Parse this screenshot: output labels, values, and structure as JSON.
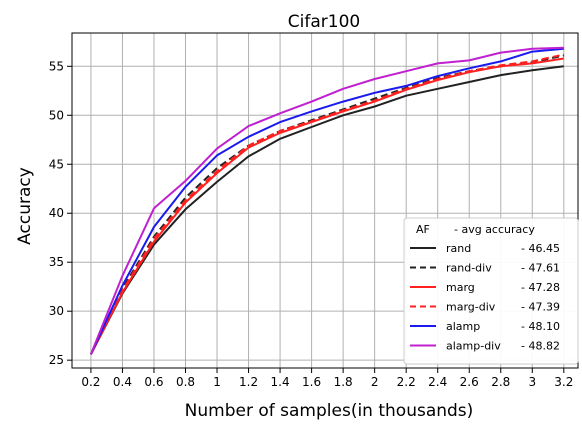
{
  "chart_data": {
    "type": "line",
    "title": "Cifar100",
    "xlabel": "Number of samples(in thousands)",
    "ylabel": "Accuracy",
    "x": [
      0.2,
      0.4,
      0.6,
      0.8,
      1.0,
      1.2,
      1.4,
      1.6,
      1.8,
      2.0,
      2.2,
      2.4,
      2.6,
      2.8,
      3.0,
      3.2
    ],
    "x_tick_labels": [
      "0.2",
      "0.4",
      "0.6",
      "0.8",
      "1",
      "1.2",
      "1.4",
      "1.6",
      "1.8",
      "2",
      "2.2",
      "2.4",
      "2.6",
      "2.8",
      "3",
      "3.2"
    ],
    "y_ticks": [
      25,
      30,
      35,
      40,
      45,
      50,
      55
    ],
    "xlim": [
      0.08,
      3.29
    ],
    "ylim": [
      24.2,
      58.4
    ],
    "grid": true,
    "legend": {
      "placement": "lower-right",
      "header_name": "AF",
      "header_value": "- avg accuracy"
    },
    "series": [
      {
        "name": "rand",
        "legend_value": "- 46.45",
        "color": "#222222",
        "dash": "solid",
        "values": [
          25.6,
          31.8,
          36.8,
          40.4,
          43.2,
          45.8,
          47.6,
          48.8,
          50.0,
          50.9,
          52.0,
          52.7,
          53.4,
          54.1,
          54.6,
          55.0
        ]
      },
      {
        "name": "rand-div",
        "legend_value": "- 47.61",
        "color": "#222222",
        "dash": "dashed",
        "values": [
          25.6,
          32.3,
          37.6,
          41.6,
          44.6,
          46.9,
          48.4,
          49.5,
          50.6,
          51.7,
          52.8,
          53.8,
          54.5,
          55.0,
          55.4,
          56.1
        ]
      },
      {
        "name": "marg",
        "legend_value": "- 47.28",
        "color": "#ff2020",
        "dash": "solid",
        "values": [
          25.6,
          31.9,
          37.1,
          41.1,
          44.1,
          46.7,
          48.2,
          49.3,
          50.4,
          51.4,
          52.6,
          53.6,
          54.4,
          55.0,
          55.3,
          55.8
        ]
      },
      {
        "name": "marg-div",
        "legend_value": "- 47.39",
        "color": "#ff2020",
        "dash": "dashed",
        "values": [
          25.6,
          32.1,
          37.4,
          41.3,
          44.3,
          46.9,
          48.4,
          49.4,
          50.5,
          51.5,
          52.7,
          53.7,
          54.5,
          55.1,
          55.5,
          56.2
        ]
      },
      {
        "name": "alamp",
        "legend_value": "- 48.10",
        "color": "#1a1aee",
        "dash": "solid",
        "values": [
          25.6,
          32.6,
          38.6,
          42.7,
          45.9,
          47.8,
          49.3,
          50.4,
          51.4,
          52.3,
          53.0,
          54.0,
          54.8,
          55.5,
          56.5,
          56.8
        ]
      },
      {
        "name": "alamp-div",
        "legend_value": "- 48.82",
        "color": "#c020d0",
        "dash": "solid",
        "values": [
          25.6,
          33.6,
          40.5,
          43.3,
          46.6,
          48.9,
          50.2,
          51.4,
          52.7,
          53.7,
          54.5,
          55.3,
          55.6,
          56.4,
          56.8,
          56.9
        ]
      }
    ]
  }
}
